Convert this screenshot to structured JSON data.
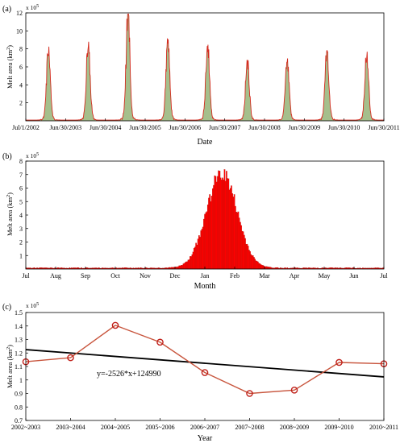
{
  "chart_data": [
    {
      "panel_label": "(a)",
      "type": "line",
      "multiplier": "x 10",
      "multiplier_exp": "5",
      "xlabel": "Date",
      "ylabel": "Melt area (km",
      "ylabel_sup": "2",
      "ylabel_end": ")",
      "ylim": [
        0,
        12
      ],
      "yticks": [
        "2",
        "4",
        "6",
        "8",
        "10",
        "12"
      ],
      "xticks": [
        "Jul/1/2002",
        "Jun/30/2003",
        "Jun/30/2004",
        "Jun/30/2005",
        "Jun/30/2006",
        "Jun/30/2007",
        "Jun/30/2008",
        "Jun/30/2009",
        "Jun/30/2010",
        "Jun/30/2011"
      ],
      "season_peaks": [
        8.5,
        8.9,
        12.1,
        9.2,
        8.6,
        6.8,
        7.1,
        7.9,
        7.7
      ],
      "colors": {
        "line": "#d42a1e",
        "fill": "#5b8a2e"
      }
    },
    {
      "panel_label": "(b)",
      "type": "bar",
      "multiplier": "x 10",
      "multiplier_exp": "5",
      "xlabel": "Month",
      "ylabel": "Melt area (km",
      "ylabel_sup": "2",
      "ylabel_end": ")",
      "ylim": [
        0,
        8
      ],
      "yticks": [
        "1",
        "2",
        "3",
        "4",
        "5",
        "6",
        "7",
        "8"
      ],
      "xticks": [
        "Jul",
        "Aug",
        "Sep",
        "Oct",
        "Nov",
        "Dec",
        "Jan",
        "Feb",
        "Mar",
        "Apr",
        "May",
        "Jun",
        "Jul"
      ],
      "peak_value": 7.4,
      "colors": {
        "bar": "#ff0000",
        "edge": "#7a1e10"
      }
    },
    {
      "panel_label": "(c)",
      "type": "line",
      "multiplier": "x 10",
      "multiplier_exp": "5",
      "xlabel": "Year",
      "ylabel": "Melt area (km",
      "ylabel_sup": "2",
      "ylabel_end": ")",
      "ylim": [
        0.7,
        1.5
      ],
      "yticks": [
        "0.7",
        "0.8",
        "0.9",
        "1",
        "1.1",
        "1.2",
        "1.3",
        "1.4",
        "1.5"
      ],
      "categories": [
        "2002~2003",
        "2003~2004",
        "2004~2005",
        "2005~2006",
        "2006~2007",
        "2007~2008",
        "2008~2009",
        "2009~2010",
        "2010~2011"
      ],
      "values": [
        1.135,
        1.165,
        1.405,
        1.28,
        1.055,
        0.9,
        0.925,
        1.13,
        1.12
      ],
      "trend": {
        "start": 1.2249,
        "end": 1.0228,
        "label": "y=-2526*x+124990"
      },
      "colors": {
        "series": "#c8553d",
        "marker": "#c0201a",
        "trend": "#000000"
      }
    }
  ]
}
